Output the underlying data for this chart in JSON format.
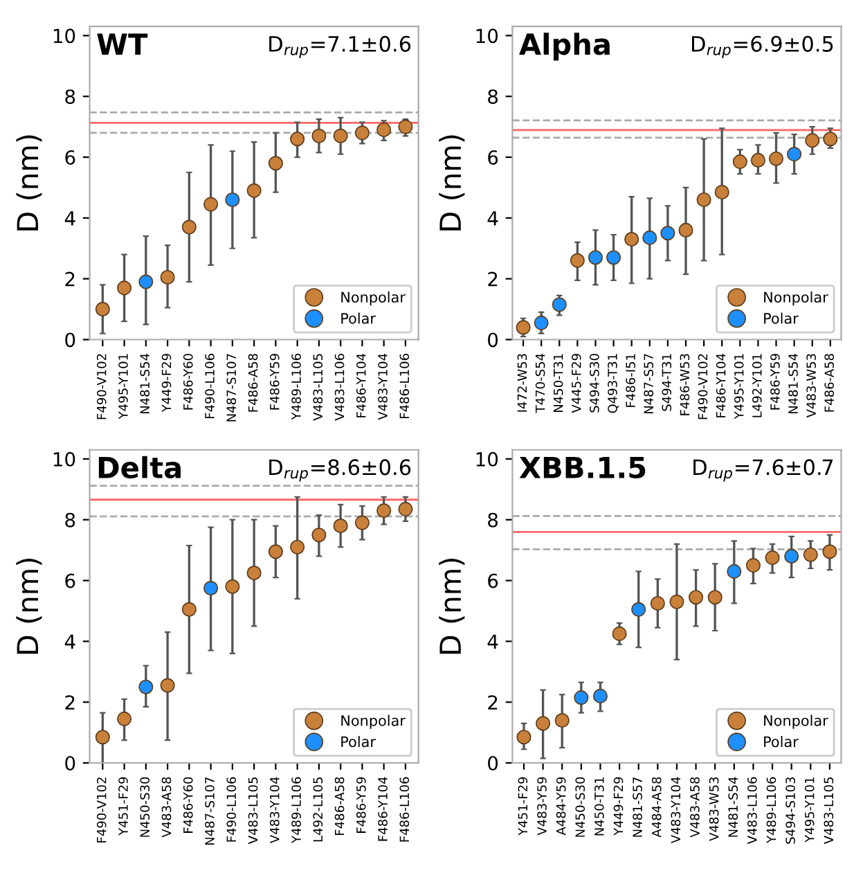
{
  "chart_data": [
    {
      "type": "scatter",
      "title": "WT",
      "annotations": [
        "D$_{rup}$=7.1±0.6"
      ],
      "ylabel": "D (nm)",
      "ylim": [
        0,
        10.3
      ],
      "yticks": [
        0,
        2,
        4,
        6,
        8,
        10
      ],
      "legend": "bottom right",
      "marker": "circle",
      "grid": false,
      "categories": [
        "F490-V102",
        "Y495-Y101",
        "N481-S54",
        "Y449-F29",
        "F486-Y60",
        "F490-L106",
        "N487-S107",
        "F486-A58",
        "F486-Y59",
        "Y489-L106",
        "V483-L105",
        "V483-L106",
        "F486-Y104",
        "V483-Y104",
        "F486-L106"
      ],
      "series": [
        {
          "name": "Nonpolar",
          "color": "#c8803a",
          "values": [
            1.0,
            1.7,
            null,
            2.05,
            3.7,
            4.45,
            null,
            4.9,
            5.8,
            6.6,
            6.7,
            6.7,
            6.8,
            6.9,
            7.0
          ],
          "errors": [
            [
              0.2,
              1.8
            ],
            [
              0.6,
              2.8
            ],
            null,
            [
              1.05,
              3.1
            ],
            [
              1.9,
              5.5
            ],
            [
              2.45,
              6.4
            ],
            null,
            [
              3.35,
              6.5
            ],
            [
              4.85,
              6.8
            ],
            [
              6.0,
              7.15
            ],
            [
              6.15,
              7.25
            ],
            [
              6.1,
              7.3
            ],
            [
              6.45,
              7.15
            ],
            [
              6.55,
              7.2
            ],
            [
              6.7,
              7.25
            ]
          ]
        },
        {
          "name": "Polar",
          "color": "#1e8fff",
          "values": [
            null,
            null,
            1.9,
            null,
            null,
            null,
            4.6,
            null,
            null,
            null,
            null,
            null,
            null,
            null,
            null
          ],
          "errors": [
            null,
            null,
            [
              0.5,
              3.4
            ],
            null,
            null,
            null,
            [
              3.0,
              6.2
            ],
            null,
            null,
            null,
            null,
            null,
            null,
            null,
            null
          ]
        }
      ],
      "ref_lines": [
        {
          "axis": "y",
          "value": 7.13,
          "color": "#ff6666",
          "line_style": "solid"
        },
        {
          "axis": "y",
          "value": 7.47,
          "color": "#aaaaaa",
          "line_style": "dashed"
        },
        {
          "axis": "y",
          "value": 6.8,
          "color": "#aaaaaa",
          "line_style": "dashed"
        }
      ]
    },
    {
      "type": "scatter",
      "title": "Alpha",
      "annotations": [
        "D$_{rup}$=6.9±0.5"
      ],
      "ylabel": "D (nm)",
      "ylim": [
        0,
        10.3
      ],
      "yticks": [
        0,
        2,
        4,
        6,
        8,
        10
      ],
      "legend": "bottom right",
      "marker": "circle",
      "grid": false,
      "categories": [
        "I472-W53",
        "T470-S54",
        "N450-T31",
        "V445-F29",
        "S494-S30",
        "Q493-T31",
        "F486-I51",
        "N487-S57",
        "S494-T31",
        "F486-W53",
        "F490-V102",
        "F486-Y104",
        "Y495-Y101",
        "L492-Y101",
        "F486-Y59",
        "N481-S54",
        "V483-W53",
        "F486-A58"
      ],
      "series": [
        {
          "name": "Nonpolar",
          "color": "#c8803a",
          "values": [
            0.4,
            null,
            null,
            2.6,
            null,
            null,
            3.3,
            null,
            null,
            3.6,
            4.6,
            4.85,
            5.85,
            5.9,
            5.95,
            null,
            6.55,
            6.6
          ],
          "errors": [
            [
              0.1,
              0.7
            ],
            null,
            null,
            [
              1.95,
              3.2
            ],
            null,
            null,
            [
              1.85,
              4.7
            ],
            null,
            null,
            [
              2.15,
              5.0
            ],
            [
              2.6,
              6.6
            ],
            [
              2.8,
              6.95
            ],
            [
              5.45,
              6.25
            ],
            [
              5.45,
              6.4
            ],
            [
              5.15,
              6.8
            ],
            null,
            [
              6.1,
              7.0
            ],
            [
              6.3,
              6.95
            ]
          ]
        },
        {
          "name": "Polar",
          "color": "#1e8fff",
          "values": [
            null,
            0.55,
            1.15,
            null,
            2.7,
            2.7,
            null,
            3.35,
            3.5,
            null,
            null,
            null,
            null,
            null,
            null,
            6.1,
            null,
            null
          ],
          "errors": [
            null,
            [
              0.2,
              0.9
            ],
            [
              0.8,
              1.45
            ],
            null,
            [
              1.8,
              3.6
            ],
            [
              1.95,
              3.45
            ],
            null,
            [
              2.0,
              4.65
            ],
            [
              2.6,
              4.4
            ],
            null,
            null,
            null,
            null,
            null,
            null,
            [
              5.45,
              6.75
            ],
            null,
            null
          ]
        }
      ],
      "ref_lines": [
        {
          "axis": "y",
          "value": 6.89,
          "color": "#ff6666",
          "line_style": "solid"
        },
        {
          "axis": "y",
          "value": 7.21,
          "color": "#aaaaaa",
          "line_style": "dashed"
        },
        {
          "axis": "y",
          "value": 6.64,
          "color": "#aaaaaa",
          "line_style": "dashed"
        }
      ]
    },
    {
      "type": "scatter",
      "title": "Delta",
      "annotations": [
        "D$_{rup}$=8.6±0.6"
      ],
      "ylabel": "D (nm)",
      "ylim": [
        0,
        10.3
      ],
      "yticks": [
        0,
        2,
        4,
        6,
        8,
        10
      ],
      "legend": "bottom right",
      "marker": "circle",
      "grid": false,
      "categories": [
        "F490-V102",
        "Y451-F29",
        "N450-S30",
        "V483-A58",
        "F486-Y60",
        "N487-S107",
        "F490-L106",
        "V483-L105",
        "V483-Y104",
        "Y489-L106",
        "L492-L105",
        "F486-A58",
        "F486-Y59",
        "F486-Y104",
        "F486-L106"
      ],
      "series": [
        {
          "name": "Nonpolar",
          "color": "#c8803a",
          "values": [
            0.85,
            1.45,
            null,
            2.55,
            5.05,
            null,
            5.8,
            6.25,
            6.95,
            7.1,
            7.5,
            7.8,
            7.9,
            8.3,
            8.35
          ],
          "errors": [
            [
              0.0,
              1.65
            ],
            [
              0.75,
              2.1
            ],
            null,
            [
              0.75,
              4.3
            ],
            [
              2.95,
              7.15
            ],
            null,
            [
              3.6,
              8.0
            ],
            [
              4.5,
              8.0
            ],
            [
              6.1,
              7.8
            ],
            [
              5.4,
              8.75
            ],
            [
              6.8,
              8.15
            ],
            [
              7.1,
              8.5
            ],
            [
              7.35,
              8.45
            ],
            [
              7.85,
              8.75
            ],
            [
              7.95,
              8.75
            ]
          ]
        },
        {
          "name": "Polar",
          "color": "#1e8fff",
          "values": [
            null,
            null,
            2.5,
            null,
            null,
            5.75,
            null,
            null,
            null,
            null,
            null,
            null,
            null,
            null,
            null
          ],
          "errors": [
            null,
            null,
            [
              1.85,
              3.2
            ],
            null,
            null,
            [
              3.7,
              7.75
            ],
            null,
            null,
            null,
            null,
            null,
            null,
            null,
            null,
            null
          ]
        }
      ],
      "ref_lines": [
        {
          "axis": "y",
          "value": 8.66,
          "color": "#ff6666",
          "line_style": "solid"
        },
        {
          "axis": "y",
          "value": 9.12,
          "color": "#aaaaaa",
          "line_style": "dashed"
        },
        {
          "axis": "y",
          "value": 8.11,
          "color": "#aaaaaa",
          "line_style": "dashed"
        }
      ]
    },
    {
      "type": "scatter",
      "title": "XBB.1.5",
      "annotations": [
        "D$_{rup}$=7.6±0.7"
      ],
      "ylabel": "D (nm)",
      "ylim": [
        0,
        10.3
      ],
      "yticks": [
        0,
        2,
        4,
        6,
        8,
        10
      ],
      "legend": "bottom right",
      "marker": "circle",
      "grid": false,
      "categories": [
        "Y451-F29",
        "V483-Y59",
        "A484-Y59",
        "N450-S30",
        "N450-T31",
        "Y449-F29",
        "N481-S57",
        "A484-A58",
        "V483-Y104",
        "V483-A58",
        "V483-W53",
        "N481-S54",
        "V483-L106",
        "Y489-L106",
        "S494-S103",
        "Y495-Y101",
        "V483-L105"
      ],
      "series": [
        {
          "name": "Nonpolar",
          "color": "#c8803a",
          "values": [
            0.85,
            1.3,
            1.4,
            null,
            null,
            4.25,
            null,
            5.25,
            5.3,
            5.45,
            5.45,
            null,
            6.5,
            6.75,
            null,
            6.85,
            6.95
          ],
          "errors": [
            [
              0.45,
              1.3
            ],
            [
              0.15,
              2.4
            ],
            [
              0.5,
              2.25
            ],
            null,
            null,
            [
              3.9,
              4.6
            ],
            null,
            [
              4.45,
              6.05
            ],
            [
              3.4,
              7.2
            ],
            [
              4.5,
              6.35
            ],
            [
              4.35,
              6.55
            ],
            null,
            [
              5.9,
              7.05
            ],
            [
              6.25,
              7.2
            ],
            null,
            [
              6.4,
              7.3
            ],
            [
              6.35,
              7.5
            ]
          ]
        },
        {
          "name": "Polar",
          "color": "#1e8fff",
          "values": [
            null,
            null,
            null,
            2.15,
            2.2,
            null,
            5.05,
            null,
            null,
            null,
            null,
            6.3,
            null,
            null,
            6.8,
            null,
            null
          ],
          "errors": [
            null,
            null,
            null,
            [
              1.65,
              2.65
            ],
            [
              1.7,
              2.65
            ],
            null,
            [
              3.8,
              6.3
            ],
            null,
            null,
            null,
            null,
            [
              5.25,
              7.3
            ],
            null,
            null,
            [
              6.1,
              7.45
            ],
            null,
            null
          ]
        }
      ],
      "ref_lines": [
        {
          "axis": "y",
          "value": 7.6,
          "color": "#ff6666",
          "line_style": "solid"
        },
        {
          "axis": "y",
          "value": 8.12,
          "color": "#aaaaaa",
          "line_style": "dashed"
        },
        {
          "axis": "y",
          "value": 7.03,
          "color": "#aaaaaa",
          "line_style": "dashed"
        }
      ]
    }
  ]
}
